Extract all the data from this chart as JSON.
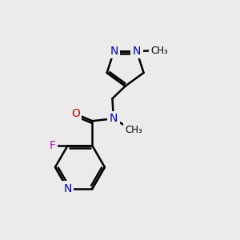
{
  "background_color": "#ebebeb",
  "bond_color": "#000000",
  "bond_width": 1.8,
  "atom_colors": {
    "N": "#0000cc",
    "O": "#cc0000",
    "F": "#cc00cc",
    "C": "#000000"
  },
  "font_size": 10,
  "fig_size": [
    3.0,
    3.0
  ],
  "dpi": 100
}
